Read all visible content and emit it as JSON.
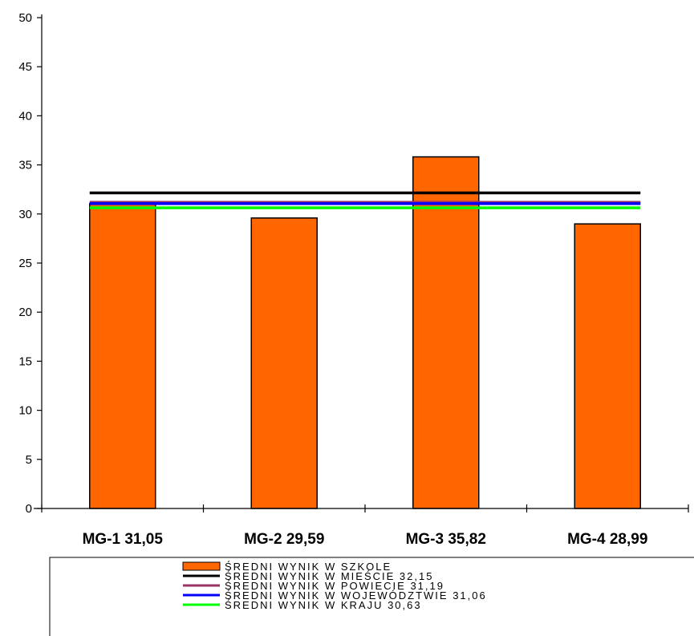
{
  "chart_data": {
    "type": "bar",
    "categories": [
      "MG-1 31,05",
      "MG-2 29,59",
      "MG-3 35,82",
      "MG-4 28,99"
    ],
    "series": [
      {
        "name": "ŚREDNI WYNIK W SZKOLE",
        "kind": "bar",
        "color": "#FF6600",
        "values": [
          31.05,
          29.59,
          35.82,
          28.99
        ]
      },
      {
        "name": "ŚREDNI WYNIK W MIEŚCIE 32,15",
        "kind": "line",
        "color": "#000000",
        "value": 32.15
      },
      {
        "name": "ŚREDNI WYNIK W POWIECIE 31,19",
        "kind": "line",
        "color": "#993366",
        "value": 31.19
      },
      {
        "name": "ŚREDNI WYNIK W WOJEWÓDZTWIE 31,06",
        "kind": "line",
        "color": "#0000FF",
        "value": 31.06
      },
      {
        "name": "ŚREDNI WYNIK W KRAJU 30,63",
        "kind": "line",
        "color": "#00FF00",
        "value": 30.63
      }
    ],
    "ylim": [
      0,
      50
    ],
    "yticks": [
      "0",
      "5",
      "10",
      "15",
      "20",
      "25",
      "30",
      "35",
      "40",
      "45",
      "50"
    ],
    "grid": false,
    "legend_position": "bottom"
  }
}
